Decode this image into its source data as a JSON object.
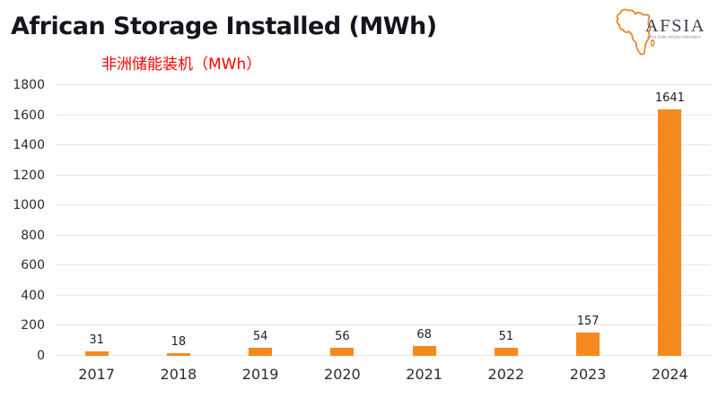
{
  "header": {
    "title": "African Storage Installed (MWh)",
    "subtitle_zh": "非洲储能装机（MWh）",
    "logo": {
      "name": "AFSIA",
      "tagline": "Africa Solar Industry Association"
    }
  },
  "colors": {
    "bar": "#F6891D",
    "subtitle": "#FF0000",
    "title": "#15151D",
    "grid": "#E9E9E9",
    "axis_text": "#2B2B33",
    "logo_outline": "#E98A2D",
    "logo_text": "#3D3D4D",
    "logo_tagline": "#8A8A95"
  },
  "chart_data": {
    "type": "bar",
    "title": "African Storage Installed (MWh)",
    "subtitle": "非洲储能装机（MWh）",
    "categories": [
      "2017",
      "2018",
      "2019",
      "2020",
      "2021",
      "2022",
      "2023",
      "2024"
    ],
    "values": [
      31,
      18,
      54,
      56,
      68,
      51,
      157,
      1641
    ],
    "xlabel": "",
    "ylabel": "",
    "ylim": [
      0,
      1800
    ],
    "yticks": [
      0,
      200,
      400,
      600,
      800,
      1000,
      1200,
      1400,
      1600,
      1800
    ],
    "grid": "horizontal",
    "legend": "none",
    "data_labels": true,
    "bar_color": "#F6891D"
  }
}
